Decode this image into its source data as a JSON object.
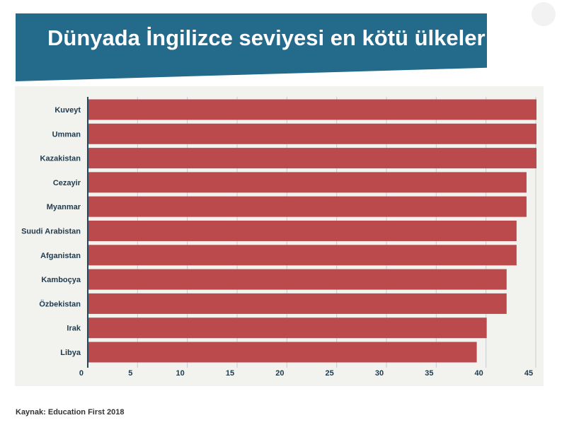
{
  "header": {
    "title": "Dünyada İngilizce seviyesi en kötü ülkeler"
  },
  "footer": {
    "source": "Kaynak: Education First 2018"
  },
  "colors": {
    "banner": "#236a8b",
    "bar": "#bb4a4d",
    "panel": "#f2f2ee",
    "label": "#1f3a4d"
  },
  "chart_data": {
    "type": "bar",
    "orientation": "horizontal",
    "categories": [
      "Kuveyt",
      "Umman",
      "Kazakistan",
      "Cezayir",
      "Myanmar",
      "Suudi Arabistan",
      "Afganistan",
      "Kamboçya",
      "Özbekistan",
      "Irak",
      "Libya"
    ],
    "values": [
      45,
      45,
      45,
      44,
      44,
      43,
      43,
      42,
      42,
      40,
      39
    ],
    "xlim": [
      0,
      45
    ],
    "xticks": [
      0,
      5,
      10,
      15,
      20,
      25,
      30,
      35,
      40,
      45
    ],
    "grid": true,
    "legend": "none"
  }
}
